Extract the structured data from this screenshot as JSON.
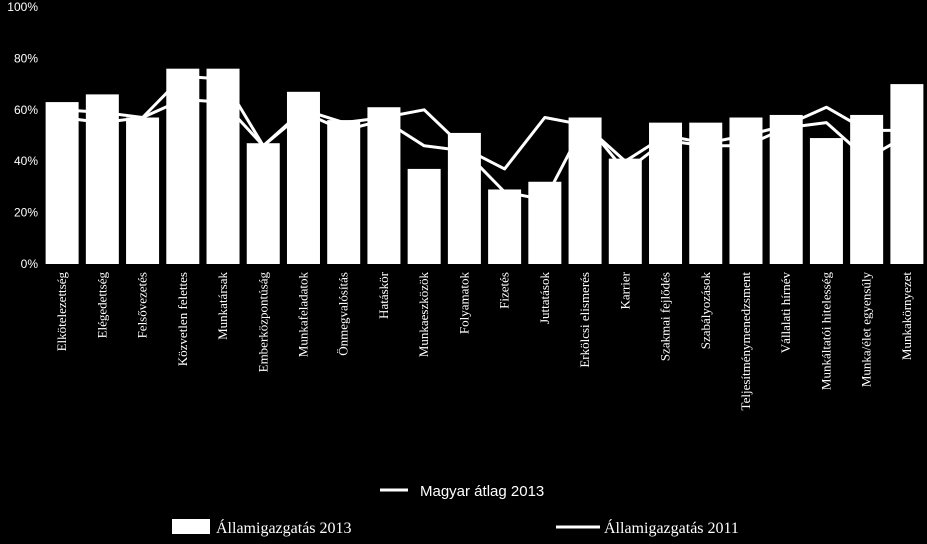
{
  "colors": {
    "background": "#000000",
    "foreground": "#ffffff"
  },
  "chart_data": {
    "type": "bar",
    "title": "",
    "xlabel": "",
    "ylabel": "",
    "ylim": [
      0,
      100
    ],
    "yticks": [
      "0%",
      "20%",
      "40%",
      "60%",
      "80%",
      "100%"
    ],
    "grid": false,
    "legend_position": "bottom",
    "categories": [
      "Elkötelezettség",
      "Elégedettség",
      "Felsővezetés",
      "Közvetlen felettes",
      "Munkatársak",
      "Emberközpontúság",
      "Munkafeladatok",
      "Önmegvalósítás",
      "Hatáskör",
      "Munkaeszközök",
      "Folyamatok",
      "Fizetés",
      "Juttatások",
      "Erkölcsi elismerés",
      "Karrier",
      "Szakmai fejlődés",
      "Szabályozások",
      "Teljesítménymenedzsment",
      "Vállalati hírnév",
      "Munkáltatói hitelesség",
      "Munka/élet egyensúly",
      "Munkakörnyezet"
    ],
    "series": [
      {
        "name": "Államigazgatás 2013",
        "type": "bar",
        "values": [
          63,
          66,
          57,
          76,
          76,
          47,
          67,
          56,
          61,
          37,
          51,
          29,
          32,
          57,
          41,
          55,
          55,
          57,
          58,
          49,
          58,
          70
        ]
      },
      {
        "name": "Magyar átlag 2013",
        "type": "line",
        "values": [
          60,
          59,
          57,
          73,
          72,
          46,
          60,
          55,
          57,
          60,
          45,
          37,
          57,
          54,
          40,
          50,
          47,
          50,
          54,
          61,
          52,
          52
        ]
      },
      {
        "name": "Államigazgatás 2011",
        "type": "line",
        "values": [
          57,
          55,
          57,
          64,
          63,
          46,
          59,
          52,
          56,
          46,
          44,
          28,
          25,
          55,
          36,
          48,
          46,
          46,
          53,
          55,
          41,
          50
        ]
      }
    ]
  }
}
